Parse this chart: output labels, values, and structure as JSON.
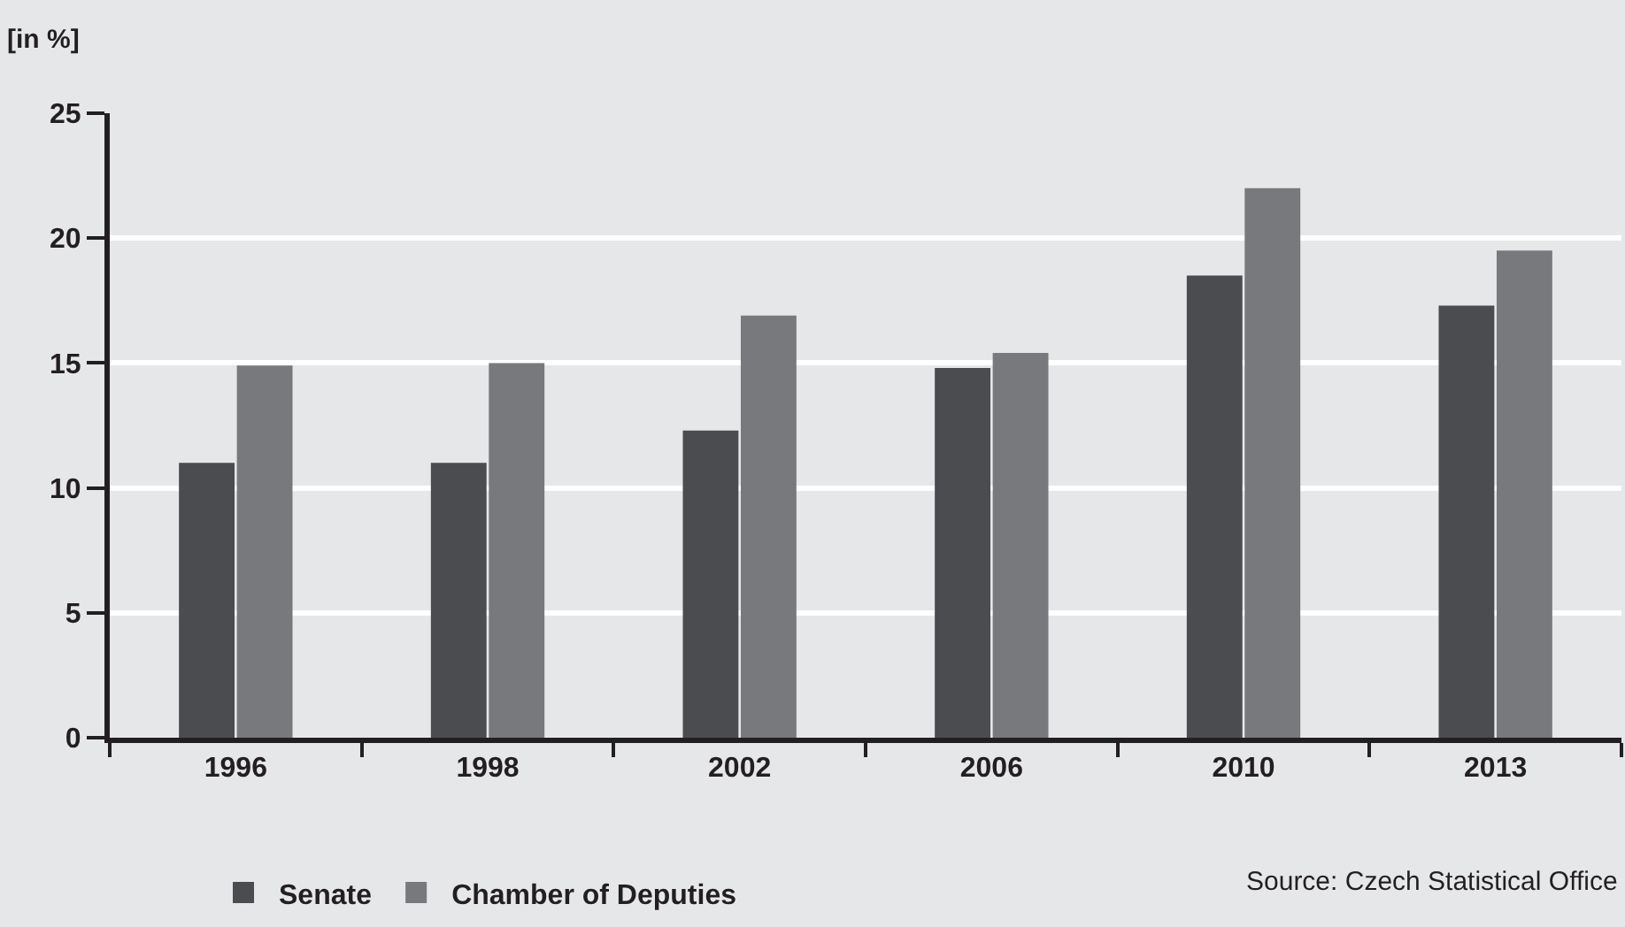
{
  "chart_data": {
    "type": "bar",
    "ylabel": "[in %]",
    "categories": [
      "1996",
      "1998",
      "2002",
      "2006",
      "2010",
      "2013"
    ],
    "series": [
      {
        "name": "Senate",
        "color": "#4b4c4f",
        "values": [
          11.0,
          11.0,
          12.3,
          14.8,
          18.5,
          17.3
        ]
      },
      {
        "name": "Chamber of Deputies",
        "color": "#78797c",
        "values": [
          14.9,
          15.0,
          16.9,
          15.4,
          22.0,
          19.5
        ]
      }
    ],
    "ylim": [
      0,
      25
    ],
    "yticks": [
      0,
      5,
      10,
      15,
      20,
      25
    ],
    "grid": "y",
    "legend": "bottom left",
    "annotations": [
      "Source: Czech Statistical Office"
    ]
  }
}
